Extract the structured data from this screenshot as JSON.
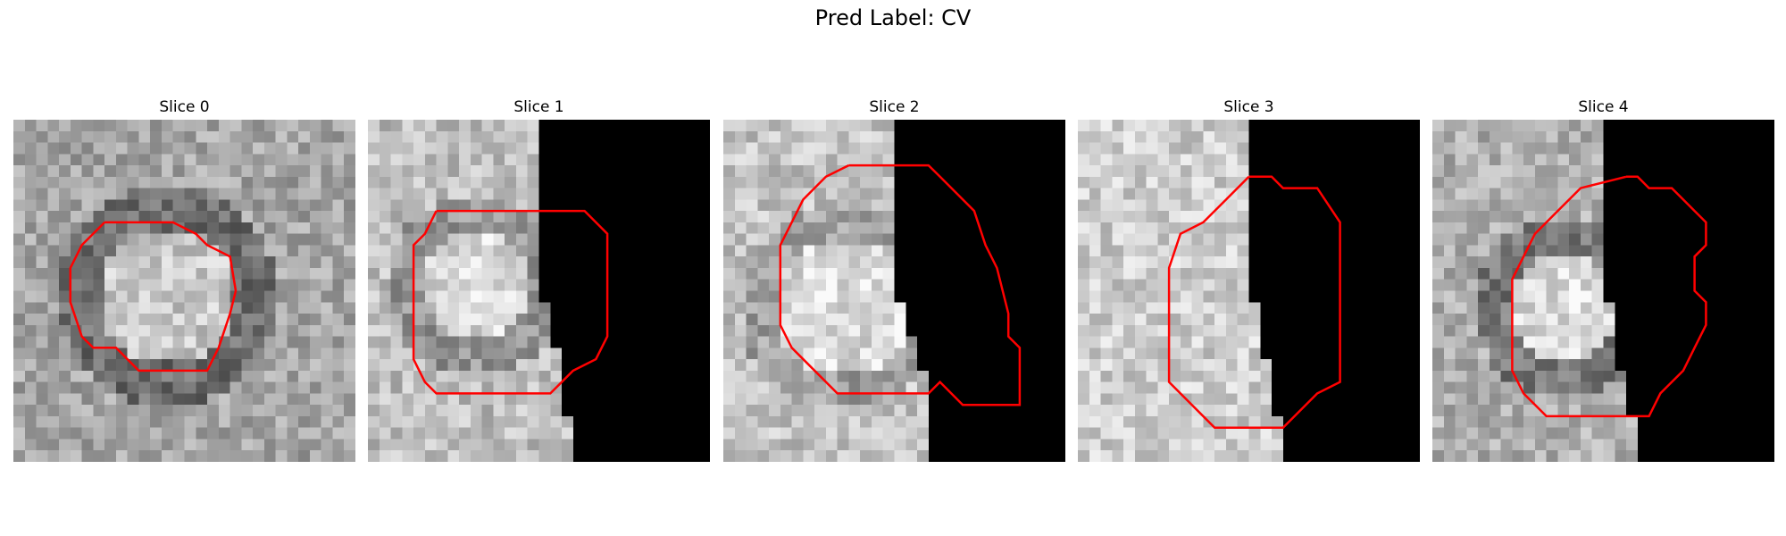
{
  "figure": {
    "title": "Pred Label: CV"
  },
  "panels": [
    {
      "title": "Slice 0"
    },
    {
      "title": "Slice 1"
    },
    {
      "title": "Slice 2"
    },
    {
      "title": "Slice 3"
    },
    {
      "title": "Slice 4"
    }
  ],
  "colors": {
    "background": "#ffffff",
    "contour": "#ff0000",
    "mask": "#000000"
  }
}
